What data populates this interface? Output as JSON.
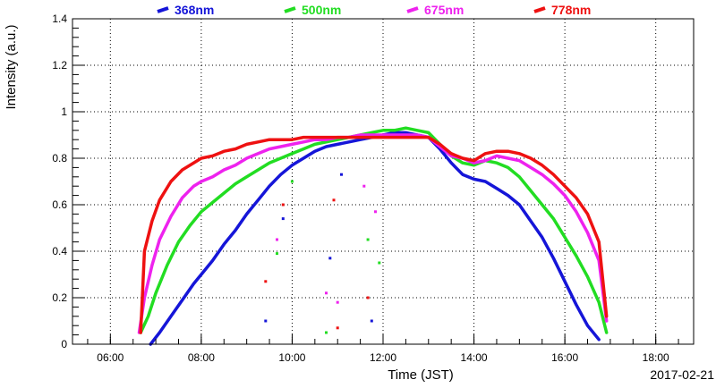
{
  "chart_data": {
    "type": "line",
    "title": "",
    "xlabel": "Time (JST)",
    "ylabel": "Intensity (a.u.)",
    "date_label": "2017-02-21",
    "xlim": [
      "05:10",
      "18:50"
    ],
    "ylim": [
      0,
      1.4
    ],
    "grid": true,
    "legend_position": "top",
    "x_ticks": [
      "06:00",
      "08:00",
      "10:00",
      "12:00",
      "14:00",
      "16:00",
      "18:00"
    ],
    "y_ticks": [
      "0",
      "0.2",
      "0.4",
      "0.6",
      "0.8",
      "1",
      "1.2",
      "1.4"
    ],
    "series": [
      {
        "name": "368nm",
        "color": "#1515d8",
        "x": [
          "06:53",
          "07:05",
          "07:20",
          "07:35",
          "07:50",
          "08:00",
          "08:15",
          "08:30",
          "08:45",
          "09:00",
          "09:15",
          "09:30",
          "09:45",
          "10:00",
          "10:15",
          "10:30",
          "10:45",
          "11:00",
          "11:15",
          "11:30",
          "11:45",
          "12:00",
          "12:15",
          "12:30",
          "12:45",
          "13:00",
          "13:15",
          "13:30",
          "13:45",
          "14:00",
          "14:15",
          "14:30",
          "14:45",
          "15:00",
          "15:15",
          "15:30",
          "15:45",
          "16:00",
          "16:15",
          "16:30",
          "16:45"
        ],
        "y": [
          0.0,
          0.05,
          0.12,
          0.19,
          0.26,
          0.3,
          0.36,
          0.43,
          0.49,
          0.56,
          0.62,
          0.68,
          0.73,
          0.77,
          0.8,
          0.83,
          0.85,
          0.86,
          0.87,
          0.88,
          0.89,
          0.9,
          0.91,
          0.91,
          0.9,
          0.89,
          0.84,
          0.78,
          0.73,
          0.71,
          0.7,
          0.67,
          0.64,
          0.6,
          0.53,
          0.46,
          0.37,
          0.27,
          0.17,
          0.08,
          0.02
        ]
      },
      {
        "name": "500nm",
        "color": "#22dd22",
        "x": [
          "06:40",
          "06:50",
          "07:00",
          "07:15",
          "07:30",
          "07:45",
          "08:00",
          "08:15",
          "08:30",
          "08:45",
          "09:00",
          "09:15",
          "09:30",
          "09:45",
          "10:00",
          "10:15",
          "10:30",
          "10:45",
          "11:00",
          "11:15",
          "11:30",
          "11:45",
          "12:00",
          "12:15",
          "12:30",
          "12:45",
          "13:00",
          "13:15",
          "13:30",
          "13:45",
          "14:00",
          "14:15",
          "14:30",
          "14:45",
          "15:00",
          "15:15",
          "15:30",
          "15:45",
          "16:00",
          "16:15",
          "16:30",
          "16:45",
          "16:55"
        ],
        "y": [
          0.05,
          0.12,
          0.22,
          0.34,
          0.44,
          0.51,
          0.57,
          0.61,
          0.65,
          0.69,
          0.72,
          0.75,
          0.78,
          0.8,
          0.82,
          0.84,
          0.86,
          0.87,
          0.88,
          0.89,
          0.9,
          0.91,
          0.92,
          0.92,
          0.93,
          0.92,
          0.91,
          0.86,
          0.81,
          0.78,
          0.77,
          0.79,
          0.78,
          0.76,
          0.72,
          0.66,
          0.6,
          0.54,
          0.46,
          0.38,
          0.29,
          0.18,
          0.05
        ]
      },
      {
        "name": "675nm",
        "color": "#ee22ee",
        "x": [
          "06:38",
          "06:45",
          "06:55",
          "07:05",
          "07:20",
          "07:35",
          "07:50",
          "08:00",
          "08:15",
          "08:30",
          "08:45",
          "09:00",
          "09:15",
          "09:30",
          "09:45",
          "10:00",
          "10:15",
          "10:30",
          "10:45",
          "11:00",
          "11:15",
          "11:30",
          "11:45",
          "12:00",
          "12:15",
          "12:30",
          "12:45",
          "13:00",
          "13:15",
          "13:30",
          "13:45",
          "14:00",
          "14:15",
          "14:30",
          "14:45",
          "15:00",
          "15:15",
          "15:30",
          "15:45",
          "16:00",
          "16:15",
          "16:30",
          "16:45",
          "16:55"
        ],
        "y": [
          0.05,
          0.2,
          0.34,
          0.45,
          0.55,
          0.63,
          0.68,
          0.7,
          0.72,
          0.75,
          0.77,
          0.8,
          0.82,
          0.84,
          0.85,
          0.86,
          0.87,
          0.88,
          0.88,
          0.89,
          0.89,
          0.9,
          0.9,
          0.9,
          0.9,
          0.9,
          0.9,
          0.89,
          0.85,
          0.81,
          0.8,
          0.78,
          0.79,
          0.81,
          0.8,
          0.79,
          0.76,
          0.73,
          0.69,
          0.64,
          0.57,
          0.48,
          0.36,
          0.1
        ]
      },
      {
        "name": "778nm",
        "color": "#ee1111",
        "x": [
          "06:40",
          "06:45",
          "06:55",
          "07:05",
          "07:20",
          "07:35",
          "07:50",
          "08:00",
          "08:15",
          "08:30",
          "08:45",
          "09:00",
          "09:15",
          "09:30",
          "09:45",
          "10:00",
          "10:15",
          "10:30",
          "10:45",
          "11:00",
          "11:15",
          "11:30",
          "11:45",
          "12:00",
          "12:15",
          "12:30",
          "12:45",
          "13:00",
          "13:15",
          "13:30",
          "13:45",
          "14:00",
          "14:15",
          "14:30",
          "14:45",
          "15:00",
          "15:15",
          "15:30",
          "15:45",
          "16:00",
          "16:15",
          "16:30",
          "16:45",
          "16:55"
        ],
        "y": [
          0.05,
          0.4,
          0.53,
          0.62,
          0.7,
          0.75,
          0.78,
          0.8,
          0.81,
          0.83,
          0.84,
          0.86,
          0.87,
          0.88,
          0.88,
          0.88,
          0.89,
          0.89,
          0.89,
          0.89,
          0.89,
          0.89,
          0.89,
          0.89,
          0.89,
          0.89,
          0.89,
          0.89,
          0.86,
          0.82,
          0.8,
          0.79,
          0.82,
          0.83,
          0.83,
          0.82,
          0.8,
          0.77,
          0.73,
          0.68,
          0.63,
          0.56,
          0.44,
          0.12
        ]
      }
    ],
    "scatter_outliers": [
      {
        "x": "09:25",
        "y": 0.1,
        "color": "#1515d8"
      },
      {
        "x": "09:25",
        "y": 0.27,
        "color": "#ee1111"
      },
      {
        "x": "09:40",
        "y": 0.45,
        "color": "#ee22ee"
      },
      {
        "x": "09:40",
        "y": 0.39,
        "color": "#22dd22"
      },
      {
        "x": "09:48",
        "y": 0.6,
        "color": "#ee1111"
      },
      {
        "x": "09:48",
        "y": 0.54,
        "color": "#1515d8"
      },
      {
        "x": "10:00",
        "y": 0.7,
        "color": "#22dd22"
      },
      {
        "x": "10:45",
        "y": 0.22,
        "color": "#ee22ee"
      },
      {
        "x": "10:45",
        "y": 0.05,
        "color": "#22dd22"
      },
      {
        "x": "10:50",
        "y": 0.37,
        "color": "#1515d8"
      },
      {
        "x": "10:55",
        "y": 0.62,
        "color": "#ee1111"
      },
      {
        "x": "11:00",
        "y": 0.18,
        "color": "#ee22ee"
      },
      {
        "x": "11:00",
        "y": 0.07,
        "color": "#ee1111"
      },
      {
        "x": "11:05",
        "y": 0.73,
        "color": "#1515d8"
      },
      {
        "x": "11:35",
        "y": 0.68,
        "color": "#ee22ee"
      },
      {
        "x": "11:40",
        "y": 0.45,
        "color": "#22dd22"
      },
      {
        "x": "11:40",
        "y": 0.2,
        "color": "#ee1111"
      },
      {
        "x": "11:45",
        "y": 0.1,
        "color": "#1515d8"
      },
      {
        "x": "11:50",
        "y": 0.57,
        "color": "#ee22ee"
      },
      {
        "x": "11:55",
        "y": 0.35,
        "color": "#22dd22"
      }
    ]
  }
}
